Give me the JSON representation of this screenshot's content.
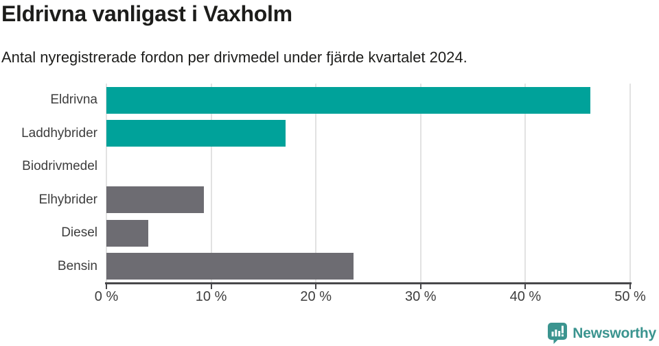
{
  "header": {
    "title": "Eldrivna vanligast i Vaxholm",
    "subtitle": "Antal nyregistrerade fordon per drivmedel under fjärde kvartalet 2024."
  },
  "chart_data": {
    "type": "bar",
    "orientation": "horizontal",
    "title": "Eldrivna vanligast i Vaxholm",
    "subtitle": "Antal nyregistrerade fordon per drivmedel under fjärde kvartalet 2024.",
    "categories": [
      "Eldrivna",
      "Laddhybrider",
      "Biodrivmedel",
      "Elhybrider",
      "Diesel",
      "Bensin"
    ],
    "values": [
      46.2,
      17.1,
      0,
      9.3,
      4.0,
      23.6
    ],
    "unit": "%",
    "bar_colors": [
      "#00a29a",
      "#00a29a",
      "#00a29a",
      "#6d6c72",
      "#6d6c72",
      "#6d6c72"
    ],
    "xlim": [
      0,
      50
    ],
    "x_ticks": [
      0,
      10,
      20,
      30,
      40,
      50
    ],
    "x_tick_labels": [
      "0 %",
      "10 %",
      "20 %",
      "30 %",
      "40 %",
      "50 %"
    ],
    "xlabel": "",
    "ylabel": "",
    "grid": true,
    "legend": false
  },
  "footer": {
    "brand": "Newsworthy",
    "logo_icon": "newsworthy-chart-bubble-icon"
  },
  "colors": {
    "accent_teal": "#00a29a",
    "neutral_gray": "#6d6c72",
    "brand_teal": "#3b948f",
    "axis": "#47474a",
    "gridline": "#e2e2e2",
    "text_dark": "#1d1d1b",
    "text_label": "#3d3d3d",
    "background": "#ffffff"
  }
}
